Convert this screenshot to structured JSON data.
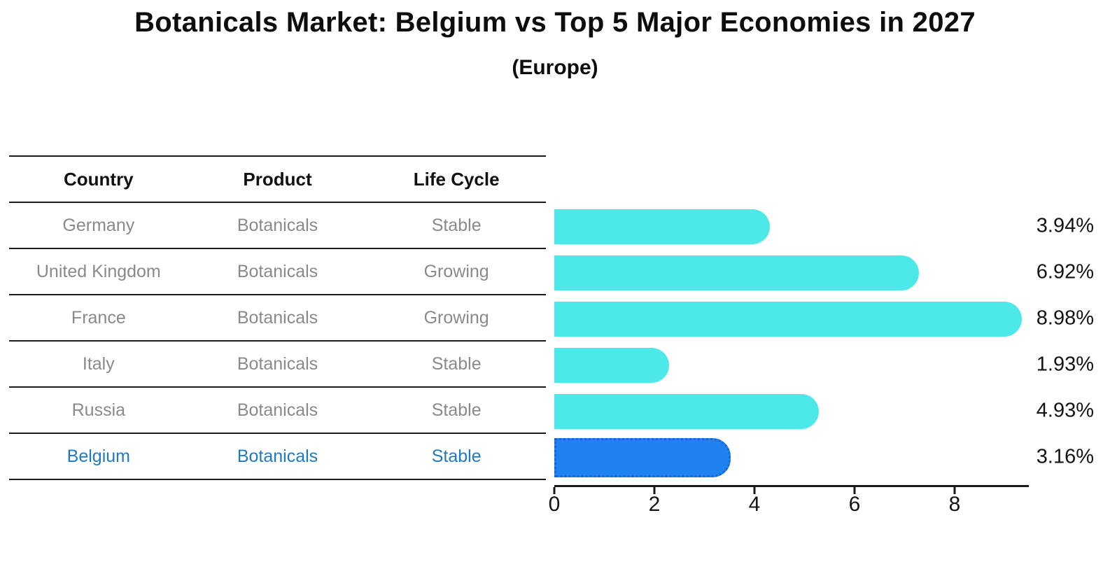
{
  "header": {
    "title": "Botanicals Market: Belgium vs Top 5 Major Economies in 2027",
    "subtitle": "(Europe)"
  },
  "table": {
    "columns": [
      "Country",
      "Product",
      "Life Cycle"
    ],
    "highlight_row": 5,
    "rows": [
      {
        "country": "Germany",
        "product": "Botanicals",
        "life_cycle": "Stable"
      },
      {
        "country": "United Kingdom",
        "product": "Botanicals",
        "life_cycle": "Growing"
      },
      {
        "country": "France",
        "product": "Botanicals",
        "life_cycle": "Growing"
      },
      {
        "country": "Italy",
        "product": "Botanicals",
        "life_cycle": "Stable"
      },
      {
        "country": "Russia",
        "product": "Botanicals",
        "life_cycle": "Stable"
      },
      {
        "country": "Belgium",
        "product": "Botanicals",
        "life_cycle": "Stable"
      }
    ]
  },
  "chart_data": {
    "type": "bar",
    "orientation": "horizontal",
    "title": "Botanicals Market: Belgium vs Top 5 Major Economies in 2027",
    "subtitle": "(Europe)",
    "categories": [
      "Germany",
      "United Kingdom",
      "France",
      "Italy",
      "Russia",
      "Belgium"
    ],
    "values": [
      3.94,
      6.92,
      8.98,
      1.93,
      4.93,
      3.16
    ],
    "value_labels": [
      "3.94%",
      "6.92%",
      "8.98%",
      "1.93%",
      "4.93%",
      "3.16%"
    ],
    "xlim": [
      0,
      9.5
    ],
    "xticks": [
      0,
      2,
      4,
      6,
      8
    ],
    "grid": false,
    "legend": false,
    "bar_color": "#4DE9E9",
    "highlight_bar_color": "#1E82F0",
    "highlight_border_color": "#1866D6",
    "highlight_text_color": "#1F7AC4",
    "muted_text_color": "#8A8A8A",
    "highlight_index": 5
  }
}
